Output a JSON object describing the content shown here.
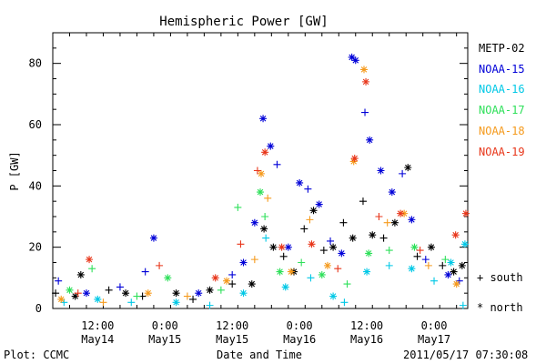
{
  "plot_footer": {
    "left": "Plot: CCMC",
    "center": "Date and Time",
    "right": "2011/05/17 07:30:08"
  },
  "symbol_key": {
    "plus": "+ south",
    "star": "* north"
  },
  "chart_data": {
    "type": "scatter",
    "title": "Hemispheric Power [GW]",
    "xlabel": "Date and Time",
    "ylabel": "P [GW]",
    "ylim": [
      0,
      90
    ],
    "yticks": [
      0,
      20,
      40,
      60,
      80
    ],
    "xlim": [
      "2011-05-14T04:00",
      "2011-05-17T06:00"
    ],
    "xticks": [
      {
        "t": "2011-05-14T12:00",
        "label": [
          "12:00",
          "May14"
        ]
      },
      {
        "t": "2011-05-15T00:00",
        "label": [
          "0:00",
          "May15"
        ]
      },
      {
        "t": "2011-05-15T12:00",
        "label": [
          "12:00",
          "May15"
        ]
      },
      {
        "t": "2011-05-16T00:00",
        "label": [
          "0:00",
          "May16"
        ]
      },
      {
        "t": "2011-05-16T12:00",
        "label": [
          "12:00",
          "May16"
        ]
      },
      {
        "t": "2011-05-17T00:00",
        "label": [
          "0:00",
          "May17"
        ]
      }
    ],
    "marker_legend": {
      "plus": "south",
      "star": "north"
    },
    "series": [
      {
        "name": "METP-02",
        "color": "#000000",
        "points": [
          [
            "2011-05-14T04:30",
            5,
            "+"
          ],
          [
            "2011-05-14T08:00",
            4,
            "*"
          ],
          [
            "2011-05-14T09:00",
            11,
            "*"
          ],
          [
            "2011-05-14T14:00",
            6,
            "+"
          ],
          [
            "2011-05-14T17:00",
            5,
            "*"
          ],
          [
            "2011-05-14T20:00",
            4,
            "+"
          ],
          [
            "2011-05-15T02:00",
            5,
            "*"
          ],
          [
            "2011-05-15T05:00",
            3,
            "+"
          ],
          [
            "2011-05-15T08:00",
            6,
            "*"
          ],
          [
            "2011-05-15T12:00",
            8,
            "+"
          ],
          [
            "2011-05-15T15:30",
            8,
            "*"
          ],
          [
            "2011-05-15T17:40",
            26,
            "*"
          ],
          [
            "2011-05-15T19:20",
            20,
            "*"
          ],
          [
            "2011-05-15T21:10",
            17,
            "+"
          ],
          [
            "2011-05-15T23:00",
            12,
            "*"
          ],
          [
            "2011-05-16T00:50",
            26,
            "+"
          ],
          [
            "2011-05-16T02:30",
            32,
            "*"
          ],
          [
            "2011-05-16T04:20",
            19,
            "+"
          ],
          [
            "2011-05-16T06:00",
            20,
            "*"
          ],
          [
            "2011-05-16T07:50",
            28,
            "+"
          ],
          [
            "2011-05-16T09:30",
            23,
            "*"
          ],
          [
            "2011-05-16T11:20",
            35,
            "+"
          ],
          [
            "2011-05-16T13:00",
            24,
            "*"
          ],
          [
            "2011-05-16T15:00",
            23,
            "+"
          ],
          [
            "2011-05-16T17:00",
            28,
            "*"
          ],
          [
            "2011-05-16T19:20",
            46,
            "*"
          ],
          [
            "2011-05-16T21:00",
            17,
            "+"
          ],
          [
            "2011-05-16T23:30",
            20,
            "*"
          ],
          [
            "2011-05-17T01:30",
            14,
            "+"
          ],
          [
            "2011-05-17T03:30",
            12,
            "*"
          ],
          [
            "2011-05-17T05:00",
            14,
            "*"
          ]
        ]
      },
      {
        "name": "NOAA-15",
        "color": "#0000d8",
        "points": [
          [
            "2011-05-14T05:00",
            9,
            "+"
          ],
          [
            "2011-05-14T10:00",
            5,
            "*"
          ],
          [
            "2011-05-14T16:00",
            7,
            "+"
          ],
          [
            "2011-05-14T20:30",
            12,
            "+"
          ],
          [
            "2011-05-14T22:00",
            23,
            "*"
          ],
          [
            "2011-05-15T06:00",
            5,
            "*"
          ],
          [
            "2011-05-15T12:00",
            11,
            "+"
          ],
          [
            "2011-05-15T14:00",
            15,
            "*"
          ],
          [
            "2011-05-15T16:00",
            28,
            "*"
          ],
          [
            "2011-05-15T17:30",
            62,
            "*"
          ],
          [
            "2011-05-15T18:50",
            53,
            "*"
          ],
          [
            "2011-05-15T20:00",
            47,
            "+"
          ],
          [
            "2011-05-15T22:00",
            20,
            "*"
          ],
          [
            "2011-05-16T00:00",
            41,
            "*"
          ],
          [
            "2011-05-16T01:30",
            39,
            "+"
          ],
          [
            "2011-05-16T03:30",
            34,
            "*"
          ],
          [
            "2011-05-16T05:30",
            22,
            "+"
          ],
          [
            "2011-05-16T07:30",
            18,
            "*"
          ],
          [
            "2011-05-16T09:20",
            82,
            "*"
          ],
          [
            "2011-05-16T10:00",
            81,
            "*"
          ],
          [
            "2011-05-16T11:40",
            64,
            "+"
          ],
          [
            "2011-05-16T12:30",
            55,
            "*"
          ],
          [
            "2011-05-16T14:30",
            45,
            "*"
          ],
          [
            "2011-05-16T16:30",
            38,
            "*"
          ],
          [
            "2011-05-16T18:20",
            44,
            "+"
          ],
          [
            "2011-05-16T20:00",
            29,
            "*"
          ],
          [
            "2011-05-16T22:30",
            16,
            "+"
          ],
          [
            "2011-05-17T02:30",
            11,
            "*"
          ],
          [
            "2011-05-17T04:30",
            9,
            "+"
          ]
        ]
      },
      {
        "name": "NOAA-16",
        "color": "#00c8e6",
        "points": [
          [
            "2011-05-14T06:00",
            2,
            "+"
          ],
          [
            "2011-05-14T12:00",
            3,
            "*"
          ],
          [
            "2011-05-14T18:00",
            2,
            "+"
          ],
          [
            "2011-05-15T02:00",
            2,
            "*"
          ],
          [
            "2011-05-15T08:00",
            1,
            "+"
          ],
          [
            "2011-05-15T14:00",
            5,
            "*"
          ],
          [
            "2011-05-15T18:00",
            23,
            "+"
          ],
          [
            "2011-05-15T21:30",
            7,
            "*"
          ],
          [
            "2011-05-16T02:00",
            10,
            "+"
          ],
          [
            "2011-05-16T06:00",
            4,
            "*"
          ],
          [
            "2011-05-16T08:00",
            2,
            "+"
          ],
          [
            "2011-05-16T12:00",
            12,
            "*"
          ],
          [
            "2011-05-16T16:00",
            14,
            "+"
          ],
          [
            "2011-05-16T20:00",
            13,
            "*"
          ],
          [
            "2011-05-17T00:00",
            9,
            "+"
          ],
          [
            "2011-05-17T03:00",
            15,
            "*"
          ],
          [
            "2011-05-17T05:30",
            21,
            "*"
          ],
          [
            "2011-05-17T05:10",
            1,
            "+"
          ]
        ]
      },
      {
        "name": "NOAA-17",
        "color": "#2ee05a",
        "points": [
          [
            "2011-05-14T07:00",
            6,
            "*"
          ],
          [
            "2011-05-14T11:00",
            13,
            "+"
          ],
          [
            "2011-05-14T19:00",
            4,
            "+"
          ],
          [
            "2011-05-15T00:30",
            10,
            "*"
          ],
          [
            "2011-05-15T10:00",
            6,
            "+"
          ],
          [
            "2011-05-15T13:00",
            33,
            "+"
          ],
          [
            "2011-05-15T17:00",
            38,
            "*"
          ],
          [
            "2011-05-15T17:50",
            30,
            "+"
          ],
          [
            "2011-05-15T20:30",
            12,
            "*"
          ],
          [
            "2011-05-16T00:20",
            15,
            "+"
          ],
          [
            "2011-05-16T04:00",
            11,
            "*"
          ],
          [
            "2011-05-16T08:30",
            8,
            "+"
          ],
          [
            "2011-05-16T12:20",
            18,
            "*"
          ],
          [
            "2011-05-16T16:00",
            19,
            "+"
          ],
          [
            "2011-05-16T20:30",
            20,
            "*"
          ],
          [
            "2011-05-17T02:00",
            16,
            "+"
          ]
        ]
      },
      {
        "name": "NOAA-18",
        "color": "#f59a1c",
        "points": [
          [
            "2011-05-14T05:30",
            3,
            "*"
          ],
          [
            "2011-05-14T13:00",
            2,
            "+"
          ],
          [
            "2011-05-14T21:00",
            5,
            "*"
          ],
          [
            "2011-05-15T04:00",
            4,
            "+"
          ],
          [
            "2011-05-15T11:00",
            9,
            "*"
          ],
          [
            "2011-05-15T16:00",
            16,
            "+"
          ],
          [
            "2011-05-15T17:10",
            44,
            "*"
          ],
          [
            "2011-05-15T18:20",
            36,
            "+"
          ],
          [
            "2011-05-15T22:30",
            12,
            "*"
          ],
          [
            "2011-05-16T01:50",
            29,
            "+"
          ],
          [
            "2011-05-16T05:00",
            14,
            "*"
          ],
          [
            "2011-05-16T09:40",
            48,
            "*"
          ],
          [
            "2011-05-16T11:30",
            78,
            "*"
          ],
          [
            "2011-05-16T15:40",
            28,
            "+"
          ],
          [
            "2011-05-16T18:40",
            31,
            "*"
          ],
          [
            "2011-05-16T23:00",
            14,
            "+"
          ],
          [
            "2011-05-17T04:00",
            8,
            "*"
          ]
        ]
      },
      {
        "name": "NOAA-19",
        "color": "#e8361a",
        "points": [
          [
            "2011-05-14T08:30",
            5,
            "+"
          ],
          [
            "2011-05-14T10:30",
            16,
            "*"
          ],
          [
            "2011-05-14T23:00",
            14,
            "+"
          ],
          [
            "2011-05-15T09:00",
            10,
            "*"
          ],
          [
            "2011-05-15T13:30",
            21,
            "+"
          ],
          [
            "2011-05-15T17:50",
            51,
            "*"
          ],
          [
            "2011-05-15T16:30",
            45,
            "+"
          ],
          [
            "2011-05-15T20:50",
            20,
            "*"
          ],
          [
            "2011-05-16T02:10",
            21,
            "*"
          ],
          [
            "2011-05-16T06:50",
            13,
            "+"
          ],
          [
            "2011-05-16T09:50",
            49,
            "*"
          ],
          [
            "2011-05-16T11:50",
            74,
            "*"
          ],
          [
            "2011-05-16T14:10",
            30,
            "+"
          ],
          [
            "2011-05-16T18:00",
            31,
            "*"
          ],
          [
            "2011-05-16T21:30",
            19,
            "+"
          ],
          [
            "2011-05-17T03:50",
            24,
            "*"
          ],
          [
            "2011-05-17T05:40",
            31,
            "*"
          ]
        ]
      }
    ]
  }
}
